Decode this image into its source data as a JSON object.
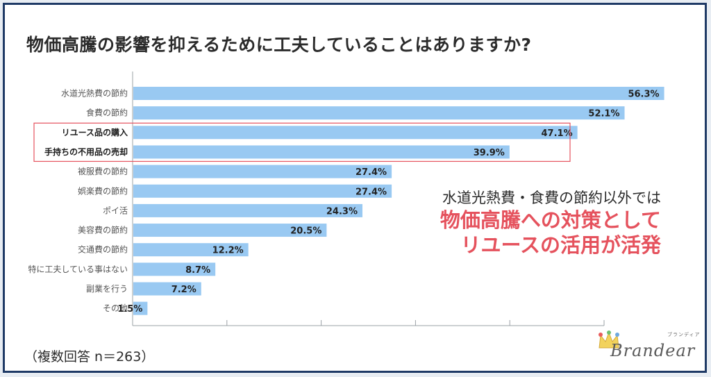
{
  "title": "物価高騰の影響を抑えるために工夫していることはありますか?",
  "annotation": {
    "line1": "水道光熱費・食費の節約以外では",
    "line2": "物価高騰への対策として",
    "line3": "リユースの活用が活発"
  },
  "footnote": "（複数回答 n＝263）",
  "logo": {
    "word": "Brandear",
    "kana": "ブランディア"
  },
  "colors": {
    "bar": "#99c9f2",
    "highlight_box": "#e5525d",
    "emphasis_text": "#e5525d",
    "frame": "#1f3a66"
  },
  "chart_data": {
    "type": "bar",
    "orientation": "horizontal",
    "categories": [
      "水道光熱費の節約",
      "食費の節約",
      "リユース品の購入",
      "手持ちの不用品の売却",
      "被服費の節約",
      "娯楽費の節約",
      "ポイ活",
      "美容費の節約",
      "交通費の節約",
      "特に工夫している事はない",
      "副業を行う",
      "その他"
    ],
    "values": [
      56.3,
      52.1,
      47.1,
      39.9,
      27.4,
      27.4,
      24.3,
      20.5,
      12.2,
      8.7,
      7.2,
      1.5
    ],
    "value_labels": [
      "56.3%",
      "52.1%",
      "47.1%",
      "39.9%",
      "27.4%",
      "27.4%",
      "24.3%",
      "20.5%",
      "12.2%",
      "8.7%",
      "7.2%",
      "1.5%"
    ],
    "highlighted": [
      "リユース品の購入",
      "手持ちの不用品の売却"
    ],
    "xlim": [
      0,
      50
    ],
    "gridlines": [
      0,
      10,
      20,
      30,
      40,
      50
    ],
    "xlabel": "",
    "ylabel": ""
  }
}
